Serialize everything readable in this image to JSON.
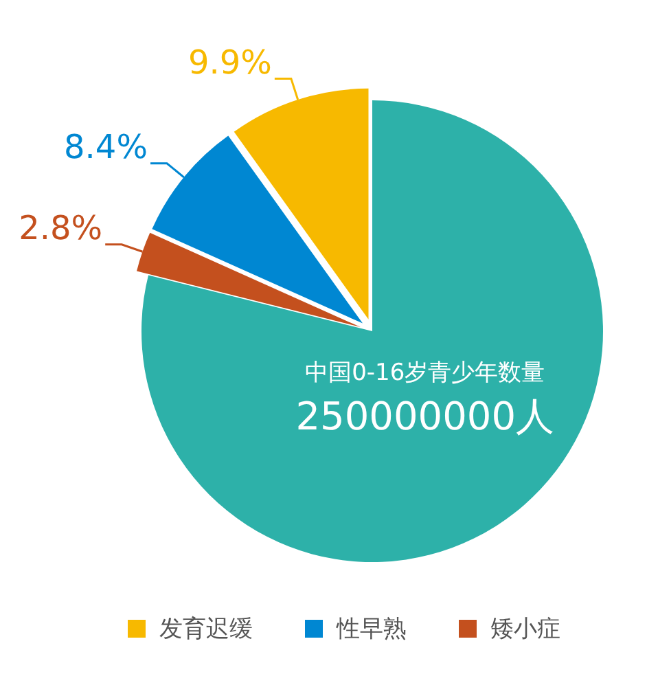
{
  "chart_data": {
    "type": "pie",
    "categories": [
      "发育迟缓",
      "性早熟",
      "矮小症",
      "中国0-16岁青少年数量"
    ],
    "values": [
      9.9,
      8.4,
      2.8,
      78.9
    ],
    "colors": [
      "#f7b900",
      "#0087d2",
      "#c4501e",
      "#2db1a9"
    ],
    "value_labels": [
      "9.9%",
      "8.4%",
      "2.8%",
      null
    ],
    "annotations": [
      "250000000人"
    ],
    "legend": "bottom"
  }
}
